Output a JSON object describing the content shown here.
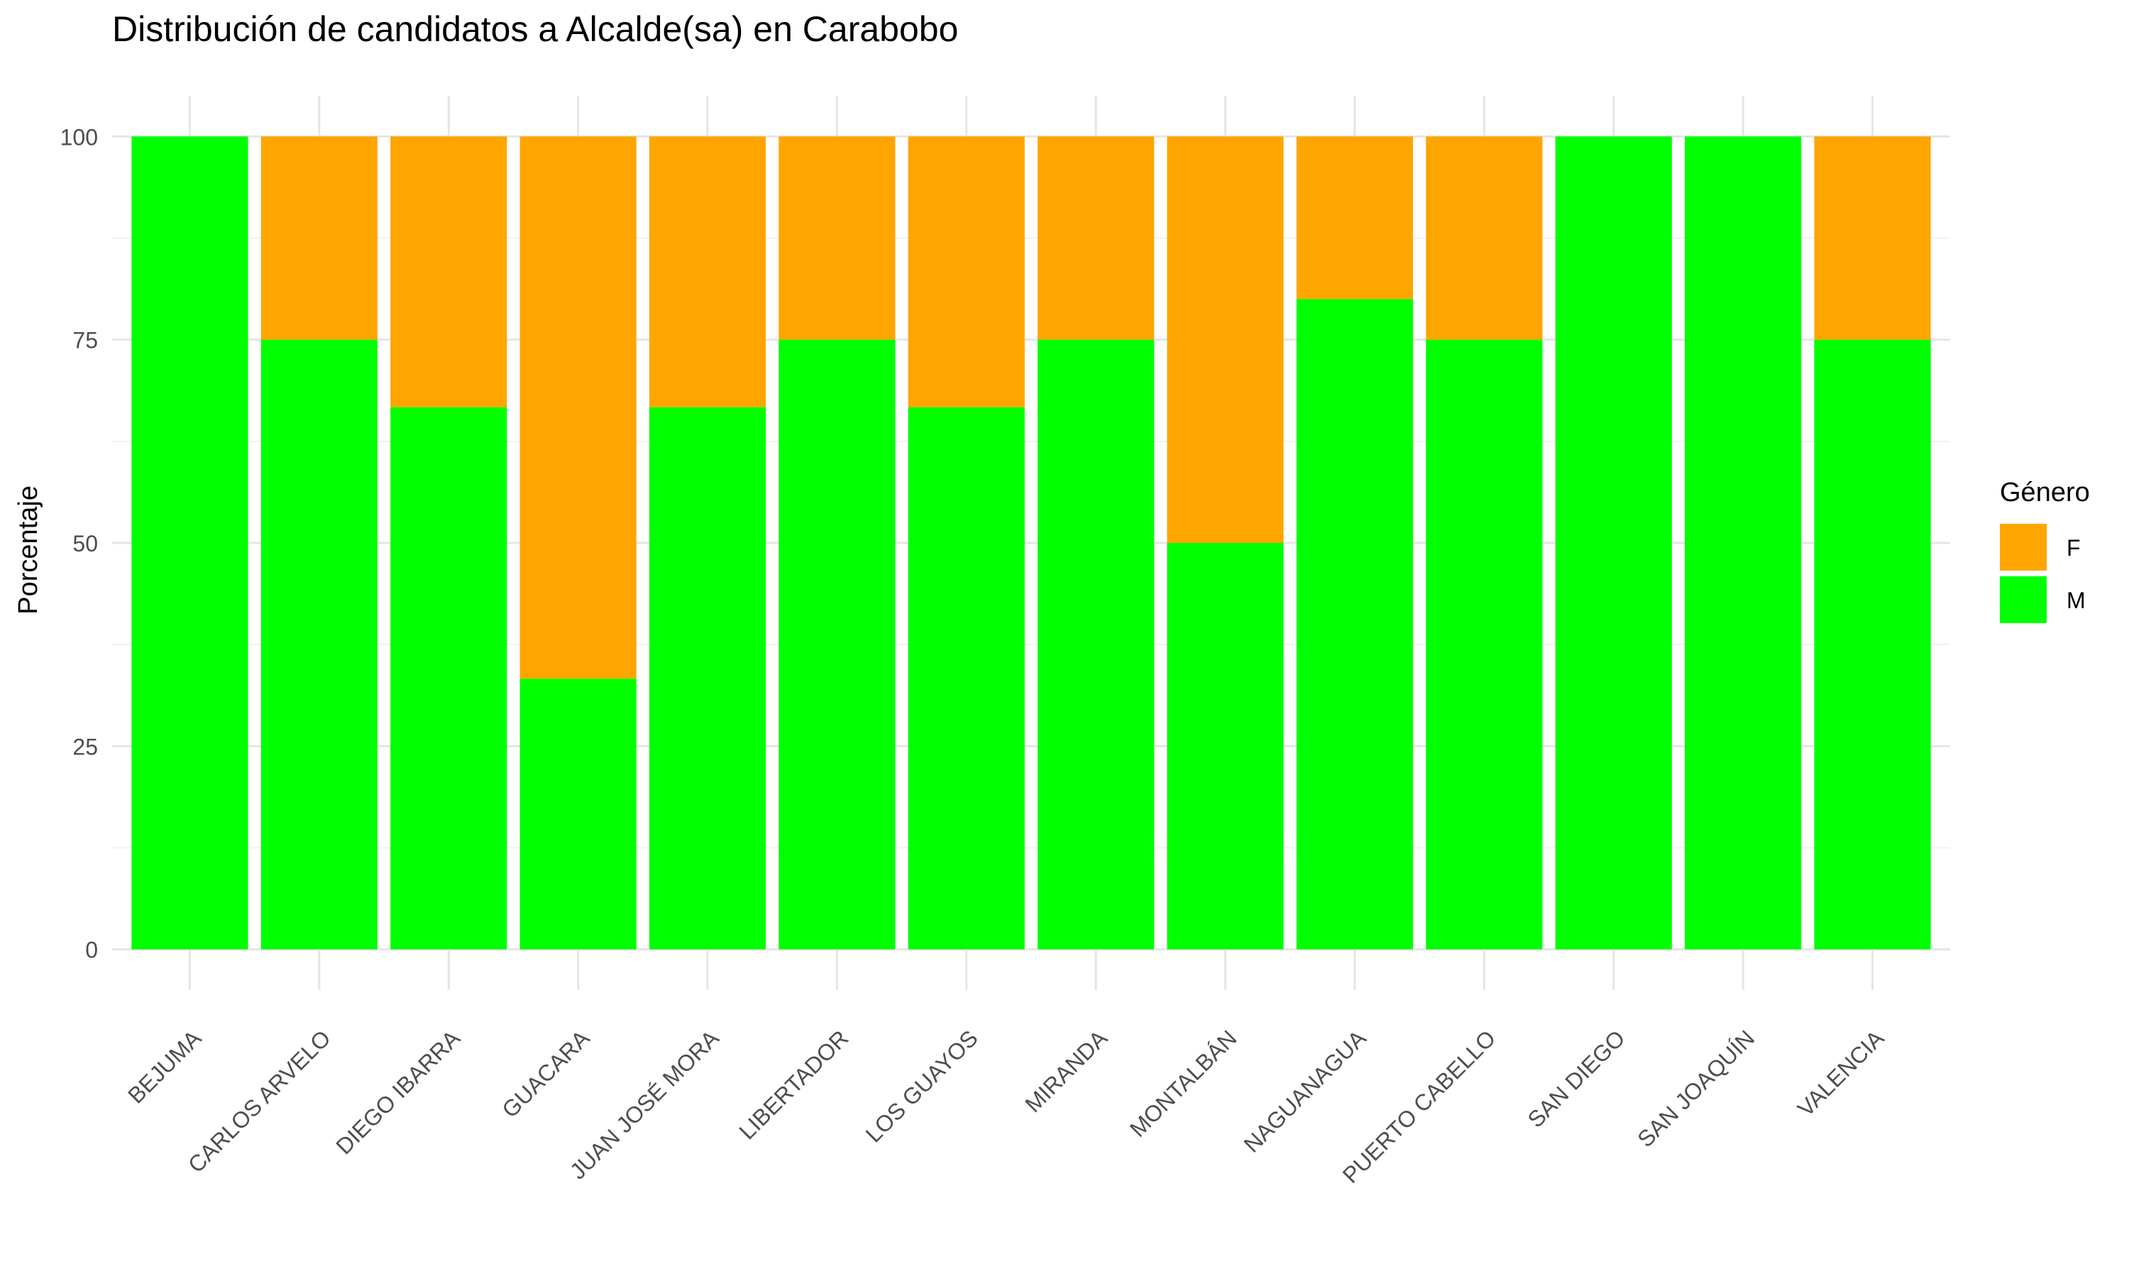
{
  "chart_data": {
    "type": "bar",
    "stacked": true,
    "title": "Distribución de candidatos a Alcalde(sa) en Carabobo",
    "xlabel": "",
    "ylabel": "Porcentaje",
    "ylim": [
      0,
      100
    ],
    "yticks": [
      0,
      25,
      50,
      75,
      100
    ],
    "grid": true,
    "legend": {
      "title": "Género",
      "position": "right"
    },
    "categories": [
      "BEJUMA",
      "CARLOS ARVELO",
      "DIEGO IBARRA",
      "GUACARA",
      "JUAN JOSÉ MORA",
      "LIBERTADOR",
      "LOS GUAYOS",
      "MIRANDA",
      "MONTALBÁN",
      "NAGUANAGUA",
      "PUERTO CABELLO",
      "SAN DIEGO",
      "SAN JOAQUÍN",
      "VALENCIA"
    ],
    "series": [
      {
        "name": "F",
        "color": "#FFA500",
        "values": [
          0,
          25,
          33.3,
          66.7,
          33.3,
          25,
          33.3,
          25,
          50,
          20,
          25,
          0,
          0,
          25
        ]
      },
      {
        "name": "M",
        "color": "#00FF00",
        "values": [
          100,
          75,
          66.7,
          33.3,
          66.7,
          75,
          66.7,
          75,
          50,
          80,
          75,
          100,
          100,
          75
        ]
      }
    ]
  }
}
